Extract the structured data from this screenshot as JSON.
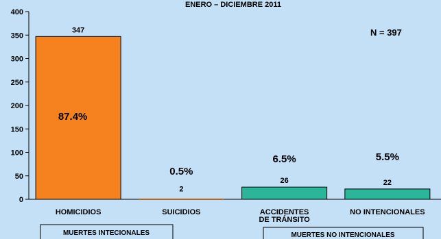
{
  "chart_data": {
    "type": "bar",
    "title": "ENERO – DICIEMBRE 2011",
    "categories": [
      "HOMICIDIOS",
      "SUICIDIOS",
      "ACCIDENTES DE TRÁNSITO",
      "NO INTENCIONALES"
    ],
    "category_lines": [
      [
        "HOMICIDIOS"
      ],
      [
        "SUICIDIOS"
      ],
      [
        "ACCIDENTES",
        "DE TRÁNSITO"
      ],
      [
        "NO INTENCIONALES"
      ]
    ],
    "values": [
      347,
      2,
      26,
      22
    ],
    "percent_labels": [
      "87.4%",
      "0.5%",
      "6.5%",
      "5.5%"
    ],
    "bar_colors": [
      "#f5821f",
      "#f5821f",
      "#2bb69a",
      "#2bb69a"
    ],
    "ylim": [
      0,
      400
    ],
    "yticks": [
      0,
      50,
      100,
      150,
      200,
      250,
      300,
      350,
      400
    ],
    "annotation": "N = 397",
    "groups": [
      "MUERTES INTECIONALES",
      "MUERTES NO INTENCIONALES"
    ],
    "grid": false,
    "background_color": "#c3e0f7"
  }
}
